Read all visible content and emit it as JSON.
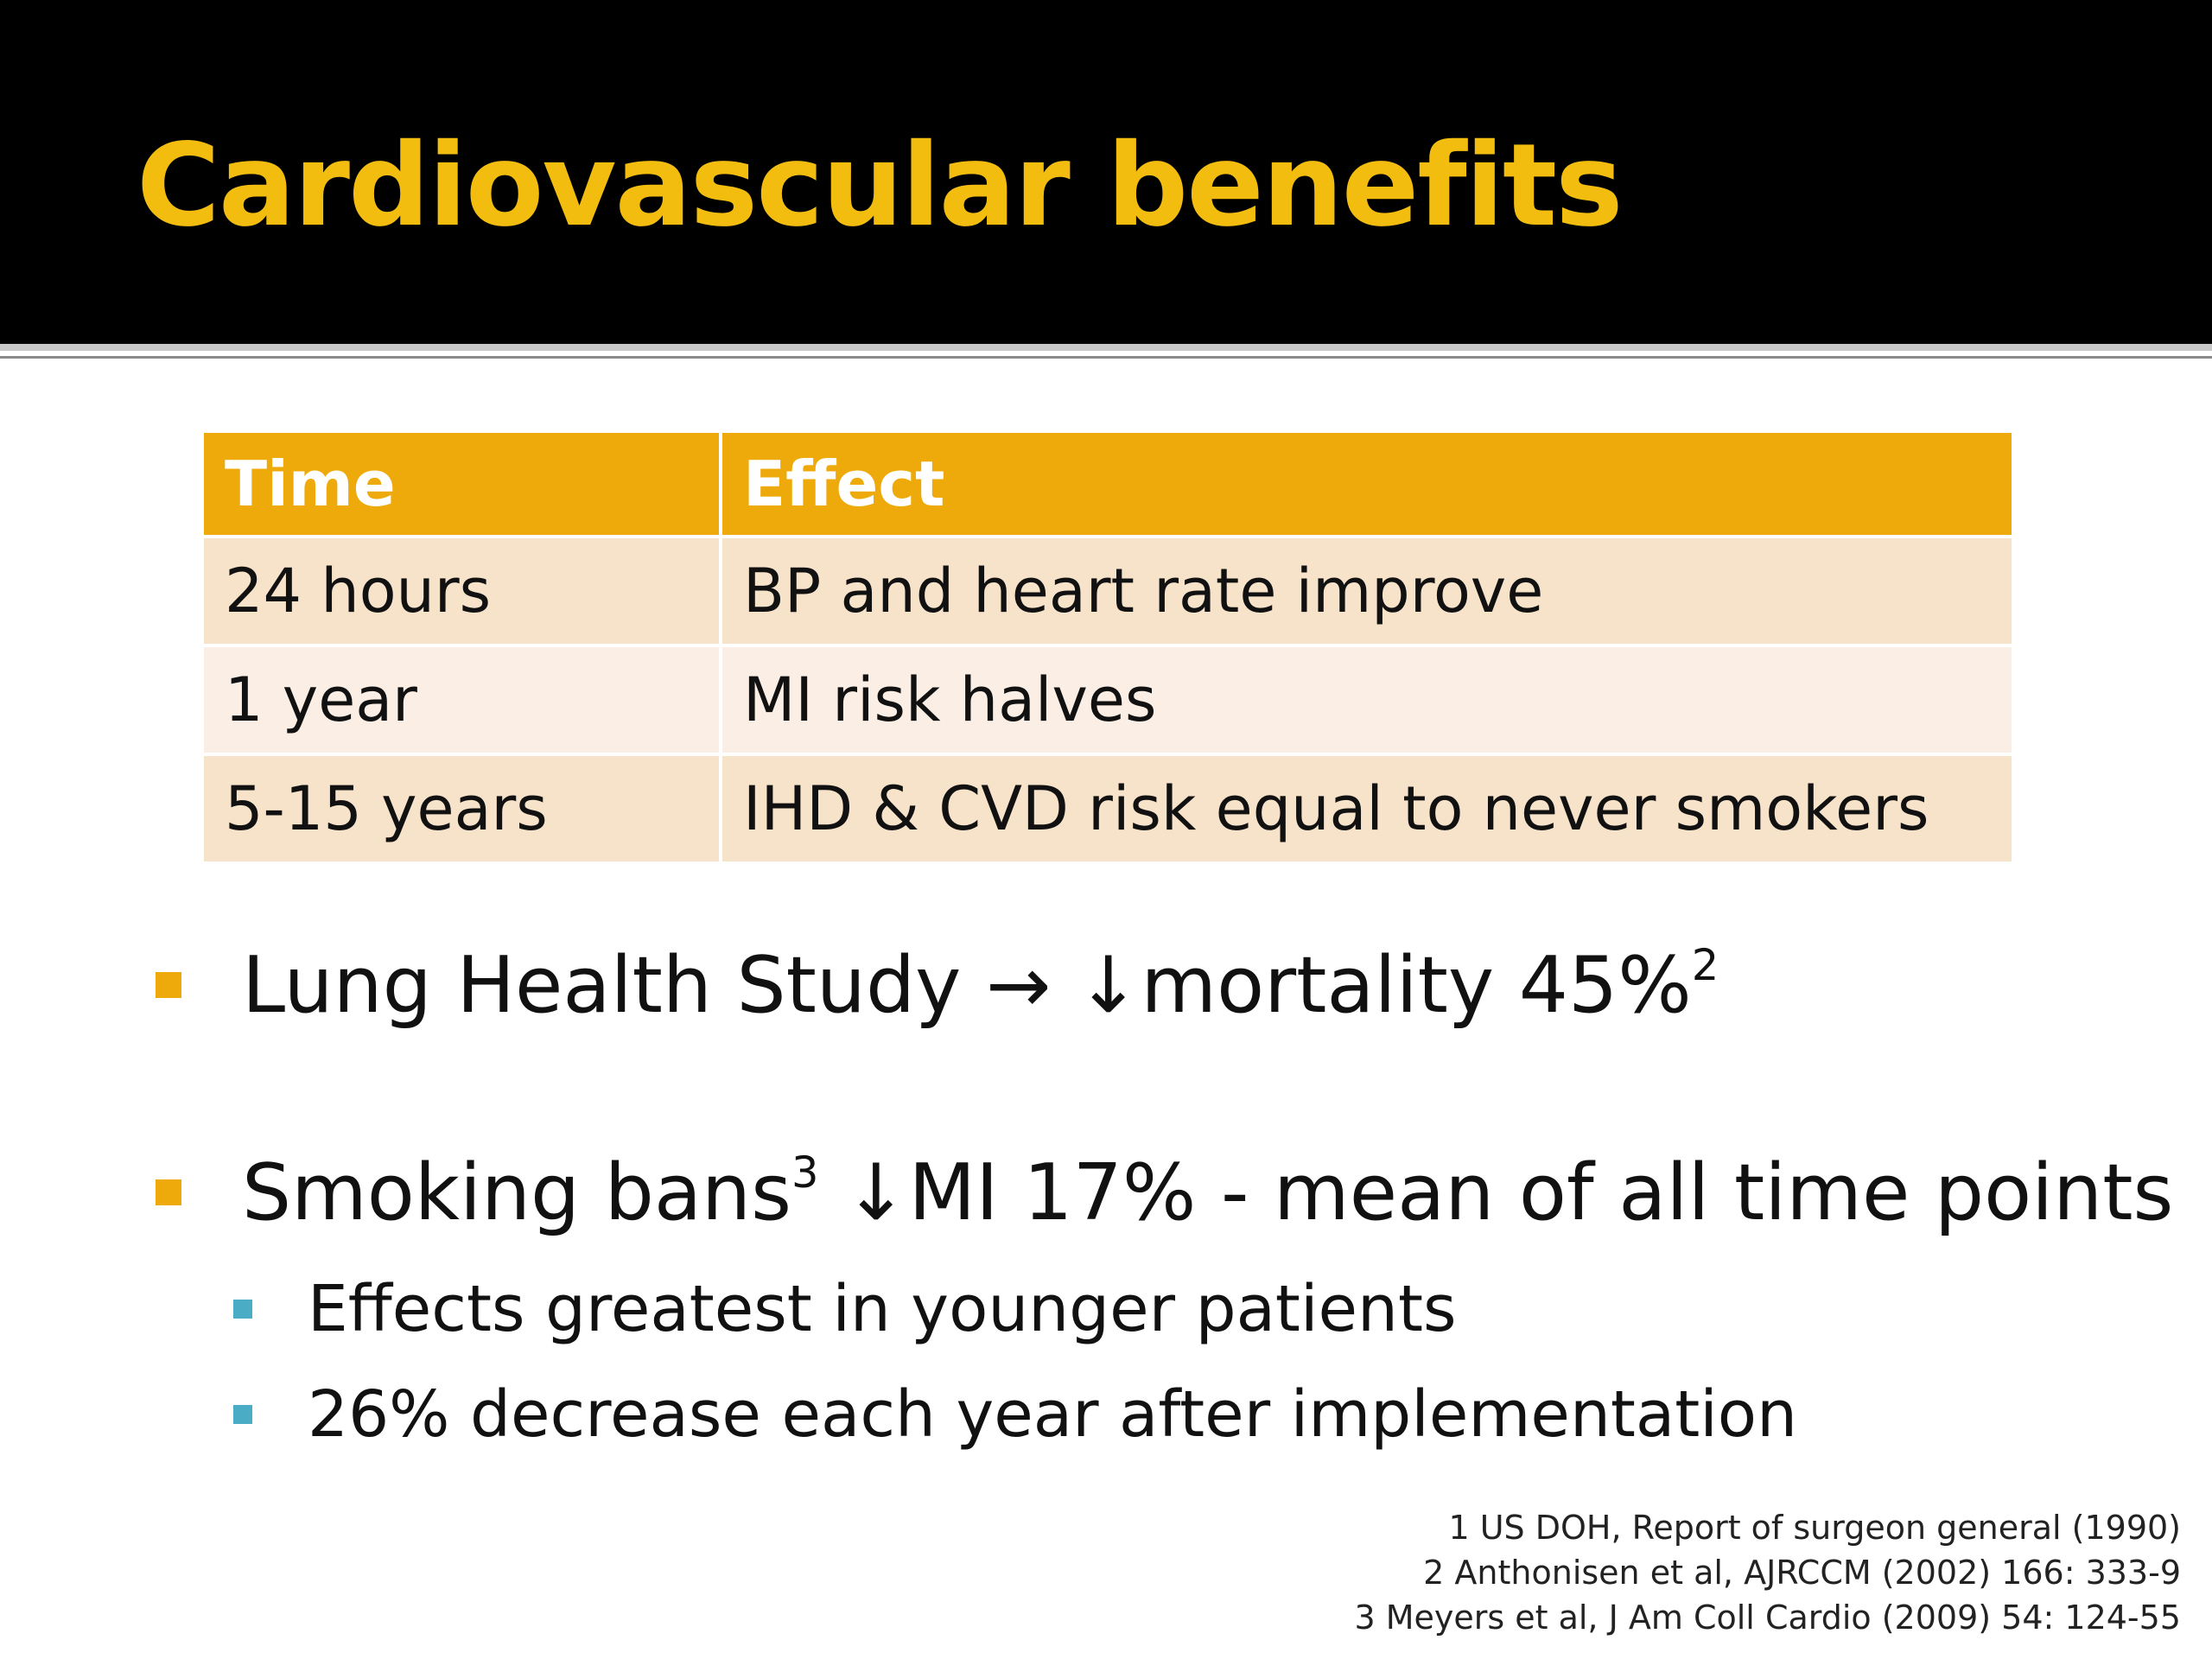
{
  "slide": {
    "title": "Cardiovascular benefits",
    "colors": {
      "title": "#f2bd0f",
      "header_fill": "#eeaa0a",
      "row_fill_a": "#f7e2ca",
      "row_fill_b": "#fbeee4",
      "bullet": "#eeaa0a",
      "sub_bullet": "#4bacc6"
    }
  },
  "table": {
    "headers": [
      "Time",
      "Effect"
    ],
    "rows": [
      [
        "24 hours",
        "BP and heart rate improve"
      ],
      [
        "1 year",
        "MI risk halves"
      ],
      [
        "5-15 years",
        "IHD & CVD risk equal to never smokers"
      ]
    ]
  },
  "bullets": {
    "b1": {
      "text": "Lung Health Study → ↓mortality 45%",
      "sup": "2"
    },
    "b2": {
      "pre": "Smoking bans",
      "sup": "3",
      "post": " ↓MI 17% - mean of all time points"
    },
    "sub": [
      "Effects greatest in younger patients",
      "26% decrease each year after implementation"
    ]
  },
  "references": [
    "1 US DOH, Report of surgeon general (1990)",
    "2 Anthonisen et al, AJRCCM (2002) 166: 333-9",
    "3 Meyers et al, J Am Coll Cardio (2009) 54: 124-55"
  ]
}
